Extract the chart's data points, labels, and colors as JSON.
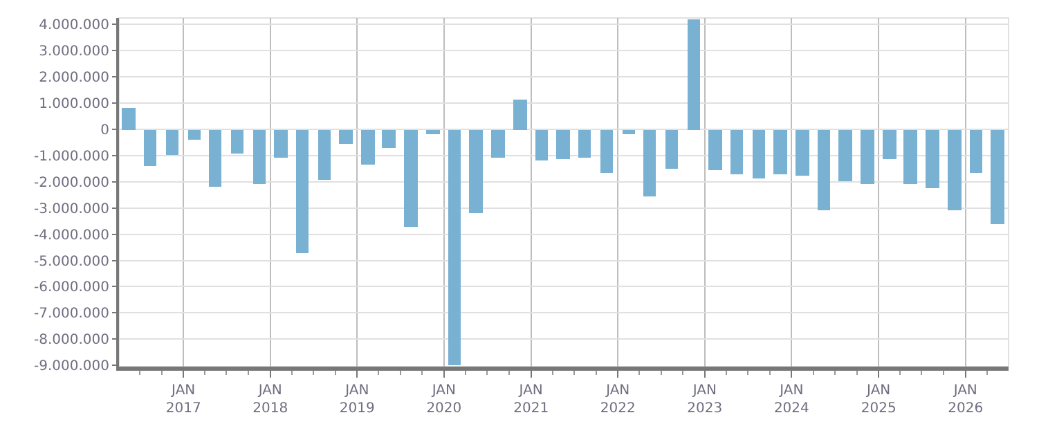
{
  "chart_data": {
    "type": "bar",
    "color": "#79b1d3",
    "x": [
      "2016-05-15",
      "2016-08-15",
      "2016-11-15",
      "2017-02-15",
      "2017-05-15",
      "2017-08-15",
      "2017-11-15",
      "2018-02-15",
      "2018-05-15",
      "2018-08-15",
      "2018-11-15",
      "2019-02-15",
      "2019-05-15",
      "2019-08-15",
      "2019-11-15",
      "2020-02-15",
      "2020-05-15",
      "2020-08-15",
      "2020-11-15",
      "2021-02-15",
      "2021-05-15",
      "2021-08-15",
      "2021-11-15",
      "2022-02-15",
      "2022-05-15",
      "2022-08-15",
      "2022-11-15",
      "2023-02-15",
      "2023-05-15",
      "2023-08-15",
      "2023-11-15",
      "2024-02-15",
      "2024-05-15",
      "2024-08-15",
      "2024-11-15",
      "2025-02-15",
      "2025-05-15",
      "2025-08-15",
      "2025-11-15",
      "2026-02-15",
      "2026-05-15"
    ],
    "values": [
      800000,
      -1400000,
      -950000,
      -400000,
      -2200000,
      -900000,
      -2100000,
      -1100000,
      -4700000,
      -1900000,
      -550000,
      -1350000,
      -700000,
      -3700000,
      -200000,
      -9000000,
      -3200000,
      -1100000,
      1150000,
      -1200000,
      -1150000,
      -1100000,
      -1650000,
      -200000,
      -2550000,
      -1500000,
      4200000,
      -1550000,
      -1700000,
      -1850000,
      -1700000,
      -1750000,
      -3100000,
      -2000000,
      -2100000,
      -1150000,
      -2100000,
      -2250000,
      -3100000,
      -1650000,
      -3600000
    ],
    "xlim": [
      "2016-04-05",
      "2026-07-01"
    ],
    "xticks": [
      {
        "value": "2016-07-01",
        "label": null
      },
      {
        "value": "2016-10-01",
        "label": null
      },
      {
        "value": "2017-01-01",
        "label": "JAN\n2017"
      },
      {
        "value": "2017-04-01",
        "label": null
      },
      {
        "value": "2017-07-01",
        "label": null
      },
      {
        "value": "2017-10-01",
        "label": null
      },
      {
        "value": "2018-01-01",
        "label": "JAN\n2018"
      },
      {
        "value": "2018-04-01",
        "label": null
      },
      {
        "value": "2018-07-01",
        "label": null
      },
      {
        "value": "2018-10-01",
        "label": null
      },
      {
        "value": "2019-01-01",
        "label": "JAN\n2019"
      },
      {
        "value": "2019-04-01",
        "label": null
      },
      {
        "value": "2019-07-01",
        "label": null
      },
      {
        "value": "2019-10-01",
        "label": null
      },
      {
        "value": "2020-01-01",
        "label": "JAN\n2020"
      },
      {
        "value": "2020-04-01",
        "label": null
      },
      {
        "value": "2020-07-01",
        "label": null
      },
      {
        "value": "2020-10-01",
        "label": null
      },
      {
        "value": "2021-01-01",
        "label": "JAN\n2021"
      },
      {
        "value": "2021-04-01",
        "label": null
      },
      {
        "value": "2021-07-01",
        "label": null
      },
      {
        "value": "2021-10-01",
        "label": null
      },
      {
        "value": "2022-01-01",
        "label": "JAN\n2022"
      },
      {
        "value": "2022-04-01",
        "label": null
      },
      {
        "value": "2022-07-01",
        "label": null
      },
      {
        "value": "2022-10-01",
        "label": null
      },
      {
        "value": "2023-01-01",
        "label": "JAN\n2023"
      },
      {
        "value": "2023-04-01",
        "label": null
      },
      {
        "value": "2023-07-01",
        "label": null
      },
      {
        "value": "2023-10-01",
        "label": null
      },
      {
        "value": "2024-01-01",
        "label": "JAN\n2024"
      },
      {
        "value": "2024-04-01",
        "label": null
      },
      {
        "value": "2024-07-01",
        "label": null
      },
      {
        "value": "2024-10-01",
        "label": null
      },
      {
        "value": "2025-01-01",
        "label": "JAN\n2025"
      },
      {
        "value": "2025-04-01",
        "label": null
      },
      {
        "value": "2025-07-01",
        "label": null
      },
      {
        "value": "2025-10-01",
        "label": null
      },
      {
        "value": "2026-01-01",
        "label": "JAN\n2026"
      },
      {
        "value": "2026-04-01",
        "label": null
      }
    ],
    "ylim": [
      -9050000,
      4250000
    ],
    "yticks": [
      {
        "value": 4000000,
        "label": "4.000.000"
      },
      {
        "value": 3000000,
        "label": "3.000.000"
      },
      {
        "value": 2000000,
        "label": "2.000.000"
      },
      {
        "value": 1000000,
        "label": "1.000.000"
      },
      0,
      {
        "value": -1000000,
        "label": "-1.000.000"
      },
      {
        "value": -2000000,
        "label": "-2.000.000"
      },
      {
        "value": -3000000,
        "label": "-3.000.000"
      },
      {
        "value": -4000000,
        "label": "-4.000.000"
      },
      {
        "value": -5000000,
        "label": "-5.000.000"
      },
      {
        "value": -6000000,
        "label": "-6.000.000"
      },
      {
        "value": -7000000,
        "label": "-7.000.000"
      },
      {
        "value": -8000000,
        "label": "-8.000.000"
      },
      {
        "value": -9000000,
        "label": "-9.000.000"
      }
    ],
    "grid": true
  }
}
